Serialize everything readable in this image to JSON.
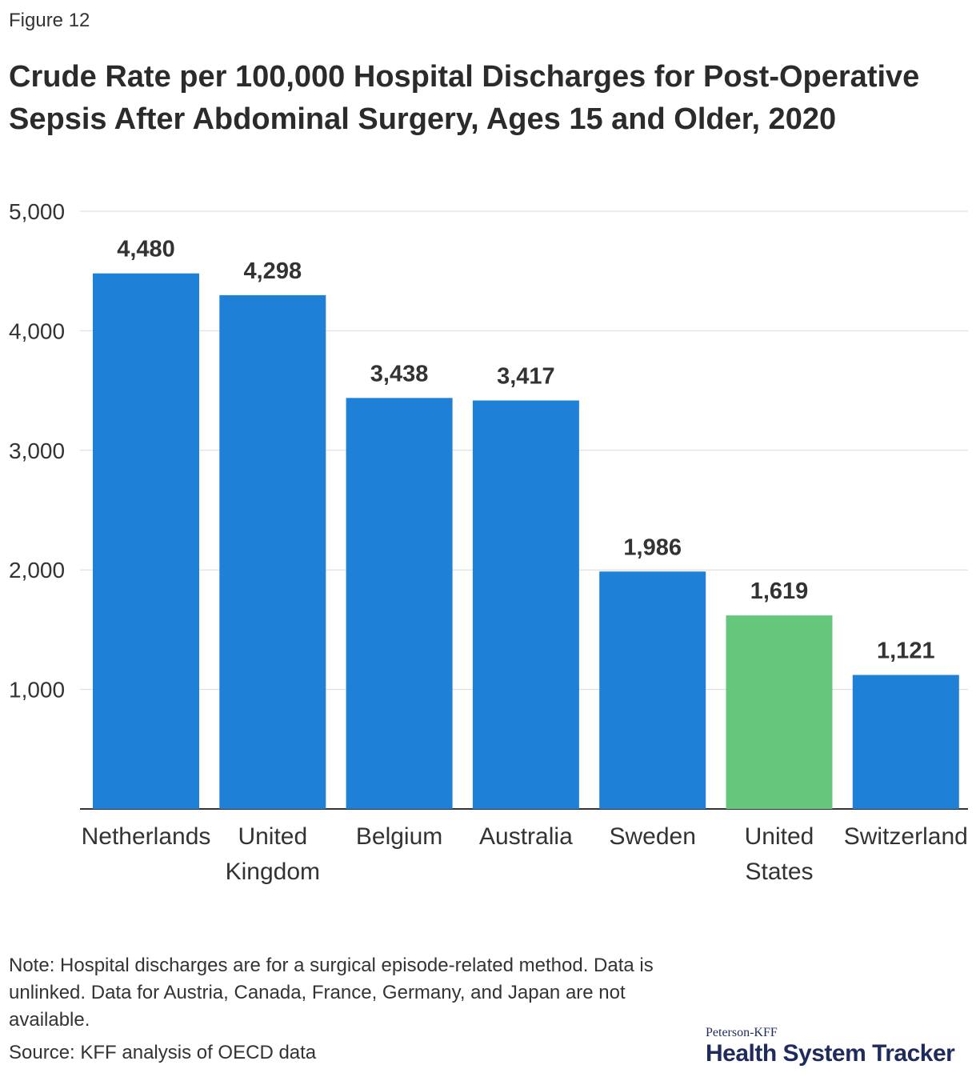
{
  "figure_label": "Figure 12",
  "chart_data": {
    "type": "bar",
    "title": "Crude Rate per 100,000 Hospital Discharges for Post-Operative Sepsis After Abdominal Surgery, Ages 15 and Older, 2020",
    "categories": [
      [
        "Netherlands"
      ],
      [
        "United",
        "Kingdom"
      ],
      [
        "Belgium"
      ],
      [
        "Australia"
      ],
      [
        "Sweden"
      ],
      [
        "United",
        "States"
      ],
      [
        "Switzerland"
      ]
    ],
    "values": [
      4480,
      4298,
      3438,
      3417,
      1986,
      1619,
      1121
    ],
    "value_labels": [
      "4,480",
      "4,298",
      "3,438",
      "3,417",
      "1,986",
      "1,619",
      "1,121"
    ],
    "highlight_index": 5,
    "colors": {
      "bar": "#1e80d6",
      "highlight": "#64c77c",
      "grid": "#d9d9d9",
      "axis": "#333333"
    },
    "y_ticks": [
      1000,
      2000,
      3000,
      4000,
      5000
    ],
    "y_tick_labels": [
      "1,000",
      "2,000",
      "3,000",
      "4,000",
      "5,000"
    ],
    "ylim": [
      0,
      5000
    ],
    "xlabel": "",
    "ylabel": "",
    "grid": true
  },
  "note": "Note: Hospital discharges are for a surgical episode-related method. Data is unlinked. Data for Austria, Canada, France, Germany, and Japan are not available.",
  "source": "Source: KFF analysis of OECD data",
  "logo": {
    "small": "Peterson-KFF",
    "big": "Health System Tracker"
  }
}
